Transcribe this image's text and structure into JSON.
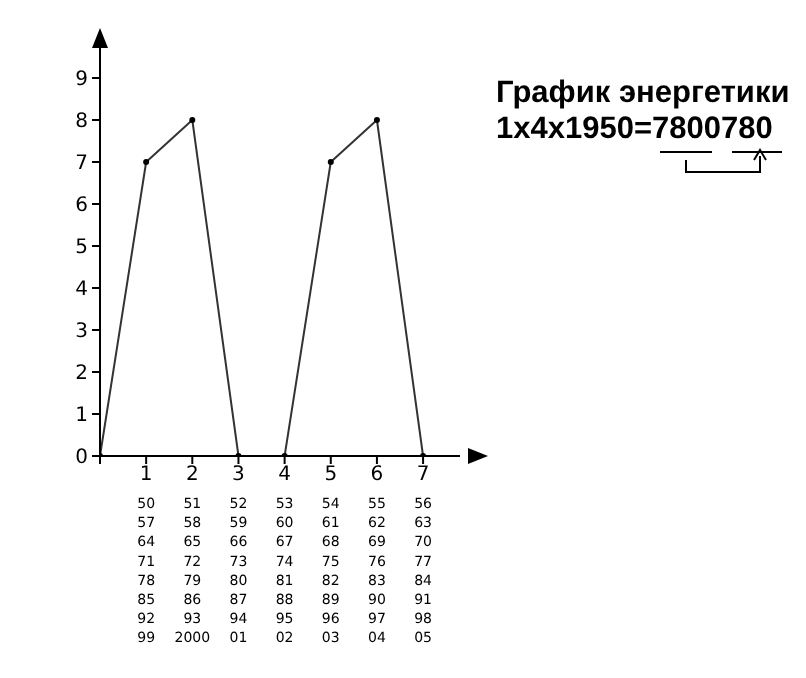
{
  "chart_data": {
    "type": "line",
    "title": "График энергетики",
    "subtitle": "1x4x1950=7800780",
    "x": [
      0,
      1,
      2,
      3,
      4,
      5,
      6,
      7
    ],
    "series": [
      {
        "color": "#333333",
        "values": [
          0,
          7,
          8,
          0,
          0,
          7,
          8,
          0
        ]
      }
    ],
    "xlim": [
      0,
      7.8
    ],
    "xticks": [
      {
        "value": 0,
        "label": null
      },
      1,
      2,
      3,
      4,
      5,
      6,
      7
    ],
    "ylim": [
      0,
      10
    ],
    "yticks": [
      0,
      1,
      2,
      3,
      4,
      5,
      6,
      7,
      8,
      9
    ],
    "grid": false,
    "legend": false,
    "marker": "circle",
    "line_style": "solid",
    "annotations": [
      "50 51 52 53 54 55 56",
      "57 58 59 60 61 62 63",
      "64 65 66 67 68 69 70",
      "71 72 73 74 75 76 77",
      "78 79 80 81 82 83 84",
      "85 86 87 88 89 90 91",
      "92 93 94 95 96 97 98",
      "99 2000 01 02 03 04 05"
    ]
  }
}
